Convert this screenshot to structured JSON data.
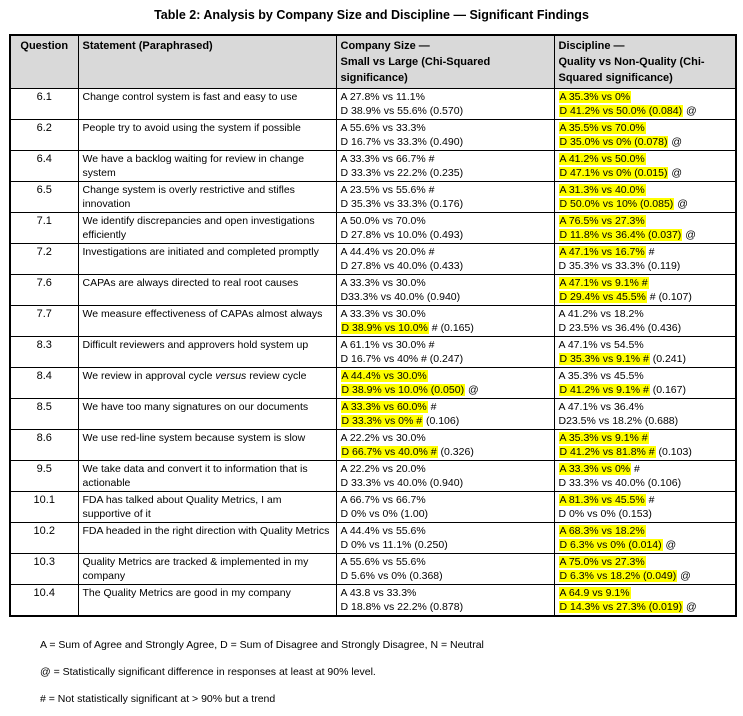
{
  "title": "Table 2: Analysis by Company Size and Discipline — Significant Findings",
  "colors": {
    "highlight": "#ffff00",
    "header_background": "#d9d9d9",
    "border": "#000000"
  },
  "table": {
    "headers": [
      "Question",
      "Statement (Paraphrased)",
      "Company Size —\nSmall vs Large (Chi-Squared\nsignificance)",
      "Discipline —\nQuality vs Non-Quality (Chi-\nSquared significance)"
    ],
    "rows": [
      {
        "question": "6.1",
        "statement": {
          "pre": "Change control system is fast and easy to use",
          "em": "",
          "post": ""
        },
        "size_a": {
          "hl": "",
          "tail": "A 27.8% vs 11.1%"
        },
        "size_d": {
          "hl": "",
          "tail": "D 38.9% vs 55.6% (0.570)"
        },
        "disc_a": {
          "hl": "A 35.3% vs 0%",
          "tail": ""
        },
        "disc_d": {
          "hl": "D 41.2% vs 50.0% (0.084)",
          "tail": " @"
        }
      },
      {
        "question": "6.2",
        "statement": {
          "pre": "People try to avoid using the system if possible",
          "em": "",
          "post": ""
        },
        "size_a": {
          "hl": "",
          "tail": "A 55.6% vs 33.3%"
        },
        "size_d": {
          "hl": "",
          "tail": "D 16.7% vs 33.3% (0.490)"
        },
        "disc_a": {
          "hl": "A 35.5% vs 70.0%",
          "tail": ""
        },
        "disc_d": {
          "hl": "D 35.0% vs 0% (0.078)",
          "tail": " @"
        }
      },
      {
        "question": "6.4",
        "statement": {
          "pre": "We have a backlog waiting for review in change system",
          "em": "",
          "post": ""
        },
        "size_a": {
          "hl": "",
          "tail": "A 33.3% vs 66.7% #"
        },
        "size_d": {
          "hl": "",
          "tail": "D 33.3% vs 22.2% (0.235)"
        },
        "disc_a": {
          "hl": "A 41.2% vs 50.0%",
          "tail": ""
        },
        "disc_d": {
          "hl": "D 47.1% vs 0% (0.015)",
          "tail": " @"
        }
      },
      {
        "question": "6.5",
        "statement": {
          "pre": "Change system is overly restrictive and stifles innovation",
          "em": "",
          "post": ""
        },
        "size_a": {
          "hl": "",
          "tail": "A 23.5% vs 55.6% #"
        },
        "size_d": {
          "hl": "",
          "tail": "D 35.3% vs 33.3% (0.176)"
        },
        "disc_a": {
          "hl": "A 31.3% vs 40.0%",
          "tail": ""
        },
        "disc_d": {
          "hl": "D 50.0% vs 10% (0.085)",
          "tail": " @"
        }
      },
      {
        "question": "7.1",
        "statement": {
          "pre": "We identify discrepancies and open investigations efficiently",
          "em": "",
          "post": ""
        },
        "size_a": {
          "hl": "",
          "tail": "A 50.0% vs 70.0%"
        },
        "size_d": {
          "hl": "",
          "tail": "D 27.8% vs 10.0% (0.493)"
        },
        "disc_a": {
          "hl": "A 76.5% vs 27.3%",
          "tail": ""
        },
        "disc_d": {
          "hl": "D 11.8% vs 36.4% (0.037)",
          "tail": " @"
        }
      },
      {
        "question": "7.2",
        "statement": {
          "pre": "Investigations are initiated and completed promptly",
          "em": "",
          "post": ""
        },
        "size_a": {
          "hl": "",
          "tail": "A 44.4% vs 20.0% #"
        },
        "size_d": {
          "hl": "",
          "tail": "D 27.8% vs 40.0% (0.433)"
        },
        "disc_a": {
          "hl": "A 47.1% vs 16.7%",
          "tail": " #"
        },
        "disc_d": {
          "hl": "",
          "tail": "D 35.3% vs 33.3% (0.119)"
        }
      },
      {
        "question": "7.6",
        "statement": {
          "pre": "CAPAs are always directed to real root causes",
          "em": "",
          "post": ""
        },
        "size_a": {
          "hl": "",
          "tail": "A 33.3% vs 30.0%"
        },
        "size_d": {
          "hl": "",
          "tail": "D33.3% vs 40.0% (0.940)"
        },
        "disc_a": {
          "hl": "A 47.1% vs 9.1% #",
          "tail": ""
        },
        "disc_d": {
          "hl": "D 29.4% vs 45.5%",
          "tail": " # (0.107)"
        }
      },
      {
        "question": "7.7",
        "statement": {
          "pre": "We measure effectiveness of CAPAs almost always",
          "em": "",
          "post": ""
        },
        "size_a": {
          "hl": "",
          "tail": "A 33.3% vs 30.0%"
        },
        "size_d": {
          "hl": "D 38.9% vs 10.0%",
          "tail": " # (0.165)"
        },
        "disc_a": {
          "hl": "",
          "tail": "A 41.2% vs 18.2%"
        },
        "disc_d": {
          "hl": "",
          "tail": "D 23.5% vs 36.4% (0.436)"
        }
      },
      {
        "question": "8.3",
        "statement": {
          "pre": "Difficult reviewers and approvers hold system up",
          "em": "",
          "post": ""
        },
        "size_a": {
          "hl": "",
          "tail": "A 61.1% vs 30.0% #"
        },
        "size_d": {
          "hl": "",
          "tail": "D 16.7% vs 40% # (0.247)"
        },
        "disc_a": {
          "hl": "",
          "tail": "A 47.1% vs 54.5%"
        },
        "disc_d": {
          "hl": "D 35.3% vs 9.1% #",
          "tail": " (0.241)"
        }
      },
      {
        "question": "8.4",
        "statement": {
          "pre": "We review in approval cycle ",
          "em": "versus",
          "post": " review cycle"
        },
        "size_a": {
          "hl": "A 44.4% vs 30.0%",
          "tail": ""
        },
        "size_d": {
          "hl": "D 38.9% vs 10.0% (0.050)",
          "tail": " @"
        },
        "disc_a": {
          "hl": "",
          "tail": "A 35.3% vs 45.5%"
        },
        "disc_d": {
          "hl": "D 41.2% vs 9.1% #",
          "tail": " (0.167)"
        }
      },
      {
        "question": "8.5",
        "statement": {
          "pre": "We have too many signatures on our documents",
          "em": "",
          "post": ""
        },
        "size_a": {
          "hl": "A 33.3% vs 60.0%",
          "tail": " #"
        },
        "size_d": {
          "hl": "D 33.3% vs 0% #",
          "tail": " (0.106)"
        },
        "disc_a": {
          "hl": "",
          "tail": "A 47.1% vs 36.4%"
        },
        "disc_d": {
          "hl": "",
          "tail": "D23.5% vs 18.2% (0.688)"
        }
      },
      {
        "question": "8.6",
        "statement": {
          "pre": "We use red-line system because system is slow",
          "em": "",
          "post": ""
        },
        "size_a": {
          "hl": "",
          "tail": "A 22.2% vs 30.0%"
        },
        "size_d": {
          "hl": "D 66.7% vs 40.0% #",
          "tail": " (0.326)"
        },
        "disc_a": {
          "hl": "A 35.3% vs 9.1% #",
          "tail": ""
        },
        "disc_d": {
          "hl": "D 41.2% vs 81.8% #",
          "tail": " (0.103)"
        }
      },
      {
        "question": "9.5",
        "statement": {
          "pre": "We take data and convert it to information that is actionable",
          "em": "",
          "post": ""
        },
        "size_a": {
          "hl": "",
          "tail": "A 22.2% vs 20.0%"
        },
        "size_d": {
          "hl": "",
          "tail": "D 33.3% vs 40.0% (0.940)"
        },
        "disc_a": {
          "hl": "A 33.3% vs 0%",
          "tail": " #"
        },
        "disc_d": {
          "hl": "",
          "tail": "D 33.3% vs 40.0% (0.106)"
        }
      },
      {
        "question": "10.1",
        "statement": {
          "pre": "FDA has talked about Quality Metrics, I am supportive of it",
          "em": "",
          "post": ""
        },
        "size_a": {
          "hl": "",
          "tail": "A 66.7% vs 66.7%"
        },
        "size_d": {
          "hl": "",
          "tail": "D 0% vs 0% (1.00)"
        },
        "disc_a": {
          "hl": "A 81.3% vs 45.5%",
          "tail": " #"
        },
        "disc_d": {
          "hl": "",
          "tail": "D 0% vs 0% (0.153)"
        }
      },
      {
        "question": "10.2",
        "statement": {
          "pre": "FDA headed in the right direction with Quality Metrics",
          "em": "",
          "post": ""
        },
        "size_a": {
          "hl": "",
          "tail": "A 44.4% vs 55.6%"
        },
        "size_d": {
          "hl": "",
          "tail": "D 0% vs 11.1% (0.250)"
        },
        "disc_a": {
          "hl": "A 68.3% vs 18.2%",
          "tail": ""
        },
        "disc_d": {
          "hl": "D 6.3% vs 0% (0.014)",
          "tail": " @"
        }
      },
      {
        "question": "10.3",
        "statement": {
          "pre": "Quality Metrics are tracked & implemented in my company",
          "em": "",
          "post": ""
        },
        "size_a": {
          "hl": "",
          "tail": "A 55.6% vs 55.6%"
        },
        "size_d": {
          "hl": "",
          "tail": "D 5.6% vs 0% (0.368)"
        },
        "disc_a": {
          "hl": "A 75.0% vs 27.3%",
          "tail": ""
        },
        "disc_d": {
          "hl": "D 6.3% vs 18.2% (0.049)",
          "tail": " @"
        }
      },
      {
        "question": "10.4",
        "statement": {
          "pre": "The Quality Metrics are good in my company",
          "em": "",
          "post": ""
        },
        "size_a": {
          "hl": "",
          "tail": "A 43.8 vs 33.3%"
        },
        "size_d": {
          "hl": "",
          "tail": "D 18.8% vs 22.2% (0.878)"
        },
        "disc_a": {
          "hl": "A 64.9 vs 9.1%",
          "tail": ""
        },
        "disc_d": {
          "hl": "D 14.3% vs 27.3% (0.019)",
          "tail": " @"
        }
      }
    ]
  },
  "footnotes": [
    "A = Sum of Agree and Strongly Agree, D = Sum of Disagree and Strongly Disagree, N = Neutral",
    "@ = Statistically significant difference in responses at least at 90% level.",
    "# = Not statistically significant at > 90% but a trend"
  ]
}
